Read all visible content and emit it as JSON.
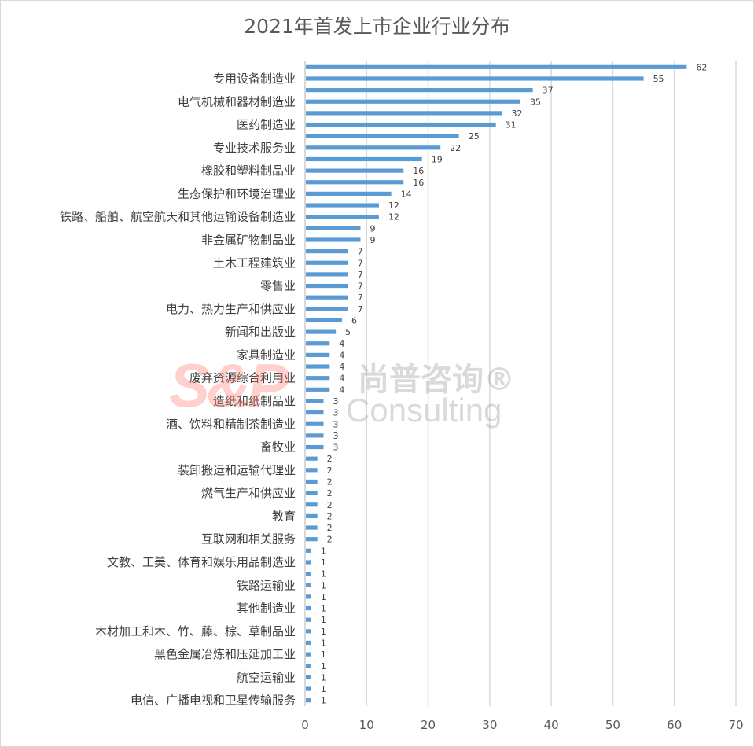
{
  "chart_data": {
    "type": "bar",
    "orientation": "horizontal",
    "title": "2021年首发上市企业行业分布",
    "categories": [
      "",
      "专用设备制造业",
      "",
      "电气机械和器材制造业",
      "",
      "医药制造业",
      "",
      "专业技术服务业",
      "",
      "橡胶和塑料制品业",
      "",
      "生态保护和环境治理业",
      "",
      "铁路、船舶、航空航天和其他运输设备制造业",
      "",
      "非金属矿物制品业",
      "",
      "土木工程建筑业",
      "",
      "零售业",
      "",
      "电力、热力生产和供应业",
      "",
      "新闻和出版业",
      "",
      "家具制造业",
      "",
      "废弃资源综合利用业",
      "",
      "造纸和纸制品业",
      "",
      "酒、饮料和精制茶制造业",
      "",
      "畜牧业",
      "",
      "装卸搬运和运输代理业",
      "",
      "燃气生产和供应业",
      "",
      "教育",
      "",
      "互联网和相关服务",
      "",
      "文教、工美、体育和娱乐用品制造业",
      "",
      "铁路运输业",
      "",
      "其他制造业",
      "",
      "木材加工和木、竹、藤、棕、草制品业",
      "",
      "黑色金属冶炼和压延加工业",
      "",
      "航空运输业",
      "",
      "电信、广播电视和卫星传输服务"
    ],
    "values": [
      62,
      55,
      37,
      35,
      32,
      31,
      25,
      22,
      19,
      16,
      16,
      14,
      12,
      12,
      9,
      9,
      7,
      7,
      7,
      7,
      7,
      7,
      6,
      5,
      4,
      4,
      4,
      4,
      4,
      3,
      3,
      3,
      3,
      3,
      2,
      2,
      2,
      2,
      2,
      2,
      2,
      2,
      1,
      1,
      1,
      1,
      1,
      1,
      1,
      1,
      1,
      1,
      1,
      1,
      1,
      1
    ],
    "xlim": [
      0,
      70
    ],
    "xticks": [
      "0",
      "10",
      "20",
      "30",
      "40",
      "50",
      "60",
      "70"
    ],
    "grid": true,
    "data_labels": true,
    "bar_color": "#5b9bd5"
  },
  "watermark": {
    "logo": "S&P",
    "cn": "尚普咨询®",
    "en": "Consulting"
  }
}
